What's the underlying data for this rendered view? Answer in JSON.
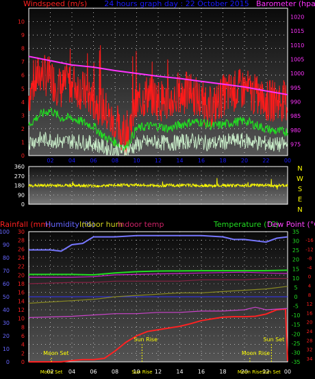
{
  "chart_data": [
    {
      "type": "line",
      "title": "24 hours graph day : 22 October 2015",
      "ylabel": "Windspeed (m/s)",
      "y2label": "Barometer (hpa)",
      "ylim": [
        0,
        11
      ],
      "y2lim": [
        971,
        1023
      ],
      "yticks": [
        "0",
        "1",
        "2",
        "3",
        "4",
        "5",
        "6",
        "7",
        "8",
        "9",
        "10"
      ],
      "y2ticks": [
        "975",
        "980",
        "985",
        "990",
        "995",
        "1000",
        "1005",
        "1010",
        "1015",
        "1020"
      ],
      "xticks": [
        "02",
        "04",
        "06",
        "08",
        "10",
        "12",
        "14",
        "16",
        "18",
        "20",
        "22",
        "00"
      ],
      "series": [
        {
          "color": "#ff1a1a",
          "x": [
            0,
            1,
            2,
            3,
            4,
            5,
            6,
            7,
            8,
            9,
            10,
            11,
            12,
            13,
            14,
            15,
            16,
            17,
            18,
            19,
            20,
            21,
            22,
            23,
            24
          ],
          "values": [
            4.5,
            6.2,
            5.8,
            5.0,
            5.5,
            4.8,
            4.2,
            3.5,
            2.0,
            1.5,
            3.8,
            4.6,
            4.2,
            4.0,
            4.5,
            4.8,
            4.0,
            3.5,
            4.5,
            4.8,
            5.0,
            4.5,
            4.0,
            4.2,
            4.0
          ]
        },
        {
          "color": "#22dd22",
          "x": [
            0,
            1,
            2,
            3,
            4,
            5,
            6,
            7,
            8,
            9,
            10,
            11,
            12,
            13,
            14,
            15,
            16,
            17,
            18,
            19,
            20,
            21,
            22,
            23,
            24
          ],
          "values": [
            2.3,
            3.0,
            3.4,
            2.8,
            2.8,
            2.5,
            2.2,
            1.4,
            1.0,
            0.6,
            2.0,
            2.2,
            2.2,
            2.0,
            2.3,
            2.5,
            2.5,
            2.2,
            2.3,
            2.5,
            2.6,
            2.3,
            2.0,
            1.8,
            1.8
          ]
        },
        {
          "color": "#c8ecc8",
          "x": [
            0,
            1,
            2,
            3,
            4,
            5,
            6,
            7,
            8,
            9,
            10,
            11,
            12,
            13,
            14,
            15,
            16,
            17,
            18,
            19,
            20,
            21,
            22,
            23,
            24
          ],
          "values": [
            1.0,
            1.2,
            1.2,
            1.0,
            1.1,
            1.0,
            0.9,
            0.6,
            0.4,
            0.3,
            0.8,
            1.0,
            1.0,
            0.9,
            1.0,
            1.1,
            1.0,
            0.9,
            1.0,
            1.1,
            1.1,
            1.0,
            0.9,
            0.8,
            0.8
          ]
        },
        {
          "color": "#ff33ff",
          "axis": "y2",
          "x": [
            0,
            2,
            4,
            6,
            8,
            10,
            12,
            14,
            16,
            18,
            20,
            22,
            24
          ],
          "values": [
            1006.0,
            1004.5,
            1003.0,
            1002.2,
            1001.0,
            1000.0,
            999.0,
            998.2,
            997.2,
            996.2,
            995.2,
            993.8,
            992.5
          ]
        }
      ]
    },
    {
      "type": "scatter",
      "ylim": [
        0,
        360
      ],
      "yticks": [
        "0",
        "90",
        "180",
        "270",
        "360"
      ],
      "y2ticks": [
        "N",
        "W",
        "S",
        "E",
        "N"
      ],
      "series": [
        {
          "color": "#ffff00",
          "x": [
            0,
            2,
            4,
            6,
            8,
            10,
            12,
            14,
            16,
            18,
            20,
            22,
            24
          ],
          "values": [
            178,
            180,
            182,
            176,
            180,
            184,
            178,
            182,
            180,
            176,
            182,
            180,
            178
          ]
        }
      ]
    },
    {
      "type": "line",
      "labels": {
        "rainfall": "Rainfall (mm)",
        "humidity": "Humidity (%)",
        "indoor_hum": "Indoor hum",
        "indoor_temp": "Indoor temp",
        "temperature": "Temperature (°C)",
        "dew_point": "Dew Point (°C)"
      },
      "rain_ticks": [
        "0",
        "2",
        "4",
        "6",
        "8",
        "10",
        "12",
        "14",
        "16",
        "18",
        "20",
        "22",
        "24",
        "26",
        "28",
        "30"
      ],
      "hum_ticks": [
        "0",
        "10",
        "20",
        "30",
        "40",
        "50",
        "60",
        "70",
        "80",
        "90",
        "100"
      ],
      "temp_ticks": [
        "-35",
        "-30",
        "-25",
        "-20",
        "-15",
        "-10",
        "-5",
        "0",
        "5",
        "10",
        "15",
        "20",
        "25",
        "30",
        "35"
      ],
      "dew_ticks": [
        "-16",
        "-12",
        "-8",
        "-4",
        "0",
        "4",
        "8",
        "12",
        "16",
        "20",
        "24",
        "28",
        "32",
        "34"
      ],
      "xticks": [
        "02",
        "04",
        "06",
        "08",
        "10",
        "12",
        "14",
        "16",
        "18",
        "20",
        "22",
        "00"
      ],
      "annotations": [
        {
          "label": "Moon Set",
          "x": 2.1
        },
        {
          "label": "Sun Rise",
          "x": 10.5
        },
        {
          "label": "Moon Rise",
          "x": 20.5
        },
        {
          "label": "Sun Set",
          "x": 22.5
        }
      ],
      "bottom_labels": [
        {
          "label": "Moon Set",
          "x": 2.1
        },
        {
          "label": "Sun Rise",
          "x": 10.5
        },
        {
          "label": "Moon Rise",
          "x": 20.5
        },
        {
          "label": "Sun Set",
          "x": 22.5
        }
      ],
      "series": [
        {
          "color": "#7777ff",
          "axis": "humidity",
          "x": [
            0,
            2,
            3,
            4,
            5,
            6,
            8,
            10,
            12,
            14,
            16,
            18,
            19,
            20,
            22,
            23,
            24
          ],
          "values": [
            86,
            86,
            85,
            90,
            91,
            96,
            96,
            97,
            97,
            97,
            97,
            96,
            94,
            94,
            92,
            95,
            96
          ]
        },
        {
          "color": "#ff2222",
          "axis": "rain",
          "x": [
            0,
            2,
            3,
            4,
            5,
            6,
            7,
            8,
            9,
            10,
            11,
            12,
            13,
            14,
            15,
            16,
            17,
            18,
            19,
            20,
            21,
            22,
            23,
            23.8,
            24
          ],
          "values": [
            0,
            0,
            0,
            0.3,
            0.5,
            0.5,
            0.8,
            2.5,
            4.5,
            6.0,
            7.0,
            7.4,
            7.8,
            8.2,
            8.8,
            9.5,
            9.9,
            10.3,
            10.4,
            10.4,
            10.5,
            11.0,
            12.0,
            12.2,
            0.2
          ]
        },
        {
          "color": "#22dd22",
          "axis": "temperature",
          "x": [
            0,
            4,
            6,
            8,
            10,
            12,
            16,
            20,
            22,
            24
          ],
          "values": [
            12.0,
            12.0,
            11.8,
            12.8,
            13.5,
            13.8,
            14.0,
            14.0,
            14.0,
            14.3
          ]
        },
        {
          "color": "#cc22cc",
          "axis": "temperature",
          "x": [
            0,
            4,
            6,
            8,
            10,
            12,
            14,
            16,
            18,
            20,
            22,
            24
          ],
          "values": [
            10.5,
            10.5,
            10.8,
            11.8,
            12.0,
            12.3,
            12.5,
            12.8,
            13.0,
            13.2,
            12.8,
            12.5
          ]
        },
        {
          "color": "#8a8a22",
          "axis": "humidity",
          "x": [
            0,
            4,
            6,
            8,
            10,
            12,
            14,
            16,
            18,
            20,
            22,
            24
          ],
          "values": [
            45,
            47,
            48,
            50,
            51,
            52,
            53,
            53,
            54,
            55,
            56,
            58
          ]
        },
        {
          "color": "#882244",
          "axis": "humidity",
          "x": [
            0,
            4,
            6,
            8,
            10,
            12,
            14,
            16,
            18,
            20,
            22,
            24
          ],
          "values": [
            60,
            61,
            61,
            62,
            62,
            62,
            62,
            63,
            63,
            63,
            64,
            64
          ]
        },
        {
          "color": "#cc44cc",
          "axis": "humidity",
          "x": [
            0,
            4,
            6,
            8,
            10,
            12,
            14,
            16,
            18,
            20,
            21,
            22,
            24
          ],
          "values": [
            34,
            35,
            36,
            37,
            37,
            38,
            38,
            39,
            39,
            40,
            42,
            40,
            41
          ]
        }
      ]
    }
  ],
  "colors": {
    "title": "#1a1aff",
    "left_axis": "#ff2020",
    "right_axis": "#ff33ff",
    "wind_dir": "#ffff00",
    "humidity": "#6666ff",
    "temperature": "#22dd22",
    "dew": "#ff44ff",
    "grid": "#ffffff",
    "lines": "#ffffff"
  }
}
